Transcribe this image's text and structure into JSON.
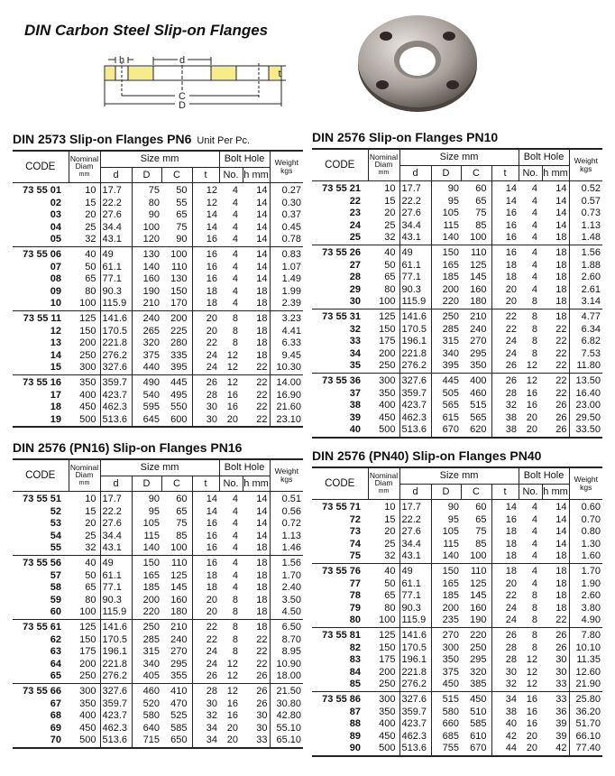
{
  "page_title": "DIN Carbon Steel Slip-on Flanges",
  "diagram_labels": {
    "h": "h",
    "d": "d",
    "t": "t",
    "C": "C",
    "D": "D"
  },
  "colors": {
    "flange_section": "#f7ec8a",
    "lines": "#222222"
  },
  "headers": {
    "code": "CODE",
    "nominal": "Nominal",
    "diam": "Diam",
    "mm": "mm",
    "size": "Size mm",
    "d": "d",
    "D": "D",
    "C": "C",
    "t": "t",
    "bolt": "Bolt Hole",
    "no": "No.",
    "hmm": "h mm",
    "weight": "Weight",
    "kgs": "kgs"
  },
  "tables": [
    {
      "title": "DIN 2573 Slip-on Flanges PN6",
      "unit": "Unit Per Pc.",
      "groups": [
        [
          [
            "73 55 01",
            "10",
            "17.7",
            "75",
            "50",
            "12",
            "4",
            "14",
            "0.27"
          ],
          [
            "02",
            "15",
            "22.2",
            "80",
            "55",
            "12",
            "4",
            "14",
            "0.30"
          ],
          [
            "03",
            "20",
            "27.6",
            "90",
            "65",
            "14",
            "4",
            "14",
            "0.37"
          ],
          [
            "04",
            "25",
            "34.4",
            "100",
            "75",
            "14",
            "4",
            "14",
            "0.45"
          ],
          [
            "05",
            "32",
            "43.1",
            "120",
            "90",
            "16",
            "4",
            "14",
            "0.78"
          ]
        ],
        [
          [
            "73 55 06",
            "40",
            "49",
            "130",
            "100",
            "16",
            "4",
            "14",
            "0.83"
          ],
          [
            "07",
            "50",
            "61.1",
            "140",
            "110",
            "16",
            "4",
            "14",
            "1.07"
          ],
          [
            "08",
            "65",
            "77.1",
            "160",
            "130",
            "16",
            "4",
            "14",
            "1.49"
          ],
          [
            "09",
            "80",
            "90.3",
            "190",
            "150",
            "18",
            "4",
            "18",
            "1.99"
          ],
          [
            "10",
            "100",
            "115.9",
            "210",
            "170",
            "18",
            "4",
            "18",
            "2.39"
          ]
        ],
        [
          [
            "73 55 11",
            "125",
            "141.6",
            "240",
            "200",
            "20",
            "8",
            "18",
            "3.23"
          ],
          [
            "12",
            "150",
            "170.5",
            "265",
            "225",
            "20",
            "8",
            "18",
            "4.41"
          ],
          [
            "13",
            "200",
            "221.8",
            "320",
            "280",
            "22",
            "8",
            "18",
            "6.33"
          ],
          [
            "14",
            "250",
            "276.2",
            "375",
            "335",
            "24",
            "12",
            "18",
            "9.45"
          ],
          [
            "15",
            "300",
            "327.6",
            "440",
            "395",
            "24",
            "12",
            "22",
            "10.30"
          ]
        ],
        [
          [
            "73 55 16",
            "350",
            "359.7",
            "490",
            "445",
            "26",
            "12",
            "22",
            "14.00"
          ],
          [
            "17",
            "400",
            "423.7",
            "540",
            "495",
            "28",
            "16",
            "22",
            "16.90"
          ],
          [
            "18",
            "450",
            "462.3",
            "595",
            "550",
            "30",
            "16",
            "22",
            "21.60"
          ],
          [
            "19",
            "500",
            "513.6",
            "645",
            "600",
            "30",
            "20",
            "22",
            "23.10"
          ]
        ]
      ]
    },
    {
      "title": "DIN 2576 Slip-on Flanges PN10",
      "groups": [
        [
          [
            "73 55 21",
            "10",
            "17.7",
            "90",
            "60",
            "14",
            "4",
            "14",
            "0.52"
          ],
          [
            "22",
            "15",
            "22.2",
            "95",
            "65",
            "14",
            "4",
            "14",
            "0.57"
          ],
          [
            "23",
            "20",
            "27.6",
            "105",
            "75",
            "16",
            "4",
            "14",
            "0.73"
          ],
          [
            "24",
            "25",
            "34.4",
            "115",
            "85",
            "16",
            "4",
            "14",
            "1.13"
          ],
          [
            "25",
            "32",
            "43.1",
            "140",
            "100",
            "16",
            "4",
            "18",
            "1.48"
          ]
        ],
        [
          [
            "73 55 26",
            "40",
            "49",
            "150",
            "110",
            "16",
            "4",
            "18",
            "1.56"
          ],
          [
            "27",
            "50",
            "61.1",
            "165",
            "125",
            "18",
            "4",
            "18",
            "1.88"
          ],
          [
            "28",
            "65",
            "77.1",
            "185",
            "145",
            "18",
            "4",
            "18",
            "2.60"
          ],
          [
            "29",
            "80",
            "90.3",
            "200",
            "160",
            "20",
            "4",
            "18",
            "2.61"
          ],
          [
            "30",
            "100",
            "115.9",
            "220",
            "180",
            "20",
            "8",
            "18",
            "3.14"
          ]
        ],
        [
          [
            "73 55 31",
            "125",
            "141.6",
            "250",
            "210",
            "22",
            "8",
            "18",
            "4.77"
          ],
          [
            "32",
            "150",
            "170.5",
            "285",
            "240",
            "22",
            "8",
            "22",
            "6.34"
          ],
          [
            "33",
            "175",
            "196.1",
            "315",
            "270",
            "24",
            "8",
            "22",
            "6.82"
          ],
          [
            "34",
            "200",
            "221.8",
            "340",
            "295",
            "24",
            "8",
            "22",
            "7.53"
          ],
          [
            "35",
            "250",
            "276.2",
            "395",
            "350",
            "26",
            "12",
            "22",
            "11.80"
          ]
        ],
        [
          [
            "73 55 36",
            "300",
            "327.6",
            "445",
            "400",
            "26",
            "12",
            "22",
            "13.50"
          ],
          [
            "37",
            "350",
            "359.7",
            "505",
            "460",
            "28",
            "16",
            "22",
            "16.40"
          ],
          [
            "38",
            "400",
            "423.7",
            "565",
            "515",
            "32",
            "16",
            "26",
            "23.00"
          ],
          [
            "39",
            "450",
            "462.3",
            "615",
            "565",
            "38",
            "20",
            "26",
            "29.50"
          ],
          [
            "40",
            "500",
            "513.6",
            "670",
            "620",
            "38",
            "20",
            "26",
            "33.50"
          ]
        ]
      ]
    },
    {
      "title": "DIN 2576 (PN16) Slip-on Flanges PN16",
      "groups": [
        [
          [
            "73 55 51",
            "10",
            "17.7",
            "90",
            "60",
            "14",
            "4",
            "14",
            "0.51"
          ],
          [
            "52",
            "15",
            "22.2",
            "95",
            "65",
            "14",
            "4",
            "14",
            "0.56"
          ],
          [
            "53",
            "20",
            "27.6",
            "105",
            "75",
            "16",
            "4",
            "14",
            "0.72"
          ],
          [
            "54",
            "25",
            "34.4",
            "115",
            "85",
            "16",
            "4",
            "14",
            "1.13"
          ],
          [
            "55",
            "32",
            "43.1",
            "140",
            "100",
            "16",
            "4",
            "18",
            "1.46"
          ]
        ],
        [
          [
            "73 55 56",
            "40",
            "49",
            "150",
            "110",
            "16",
            "4",
            "18",
            "1.56"
          ],
          [
            "57",
            "50",
            "61.1",
            "165",
            "125",
            "18",
            "4",
            "18",
            "1.70"
          ],
          [
            "58",
            "65",
            "77.1",
            "185",
            "145",
            "18",
            "4",
            "18",
            "2.40"
          ],
          [
            "59",
            "80",
            "90.3",
            "200",
            "160",
            "20",
            "8",
            "18",
            "3.50"
          ],
          [
            "60",
            "100",
            "115.9",
            "220",
            "180",
            "20",
            "8",
            "18",
            "4.50"
          ]
        ],
        [
          [
            "73 55 61",
            "125",
            "141.6",
            "250",
            "210",
            "22",
            "8",
            "18",
            "6.50"
          ],
          [
            "62",
            "150",
            "170.5",
            "285",
            "240",
            "22",
            "8",
            "22",
            "8.70"
          ],
          [
            "63",
            "175",
            "196.1",
            "315",
            "270",
            "24",
            "8",
            "22",
            "8.95"
          ],
          [
            "64",
            "200",
            "221.8",
            "340",
            "295",
            "24",
            "12",
            "22",
            "10.90"
          ],
          [
            "65",
            "250",
            "276.2",
            "405",
            "355",
            "26",
            "12",
            "26",
            "18.00"
          ]
        ],
        [
          [
            "73 55 66",
            "300",
            "327.6",
            "460",
            "410",
            "28",
            "12",
            "26",
            "21.50"
          ],
          [
            "67",
            "350",
            "359.7",
            "520",
            "470",
            "30",
            "16",
            "26",
            "30.80"
          ],
          [
            "68",
            "400",
            "423.7",
            "580",
            "525",
            "32",
            "16",
            "30",
            "42.80"
          ],
          [
            "69",
            "450",
            "462.3",
            "640",
            "585",
            "34",
            "20",
            "30",
            "55.10"
          ],
          [
            "70",
            "500",
            "513.6",
            "715",
            "650",
            "34",
            "20",
            "33",
            "65.10"
          ]
        ]
      ]
    },
    {
      "title": "DIN 2576 (PN40) Slip-on Flanges PN40",
      "groups": [
        [
          [
            "73 55 71",
            "10",
            "17.7",
            "90",
            "60",
            "14",
            "4",
            "14",
            "0.60"
          ],
          [
            "72",
            "15",
            "22.2",
            "95",
            "65",
            "16",
            "4",
            "14",
            "0.70"
          ],
          [
            "73",
            "20",
            "27.6",
            "105",
            "75",
            "18",
            "4",
            "14",
            "0.80"
          ],
          [
            "74",
            "25",
            "34.4",
            "115",
            "85",
            "18",
            "4",
            "14",
            "1.30"
          ],
          [
            "75",
            "32",
            "43.1",
            "140",
            "100",
            "18",
            "4",
            "18",
            "1.60"
          ]
        ],
        [
          [
            "73 55 76",
            "40",
            "49",
            "150",
            "110",
            "18",
            "4",
            "18",
            "1.70"
          ],
          [
            "77",
            "50",
            "61.1",
            "165",
            "125",
            "20",
            "4",
            "18",
            "1.90"
          ],
          [
            "78",
            "65",
            "77.1",
            "185",
            "145",
            "22",
            "8",
            "18",
            "2.60"
          ],
          [
            "79",
            "80",
            "90.3",
            "200",
            "160",
            "24",
            "8",
            "18",
            "3.80"
          ],
          [
            "80",
            "100",
            "115.9",
            "235",
            "190",
            "24",
            "8",
            "22",
            "4.90"
          ]
        ],
        [
          [
            "73 55 81",
            "125",
            "141.6",
            "270",
            "220",
            "26",
            "8",
            "26",
            "7.80"
          ],
          [
            "82",
            "150",
            "170.5",
            "300",
            "250",
            "28",
            "8",
            "26",
            "10.10"
          ],
          [
            "83",
            "175",
            "196.1",
            "350",
            "295",
            "28",
            "12",
            "30",
            "11.35"
          ],
          [
            "84",
            "200",
            "221.8",
            "375",
            "320",
            "30",
            "12",
            "30",
            "12.60"
          ],
          [
            "85",
            "250",
            "276.2",
            "450",
            "385",
            "32",
            "12",
            "33",
            "21.90"
          ]
        ],
        [
          [
            "73 55 86",
            "300",
            "327.6",
            "515",
            "450",
            "34",
            "16",
            "33",
            "25.80"
          ],
          [
            "87",
            "350",
            "359.7",
            "580",
            "510",
            "38",
            "16",
            "36",
            "36.20"
          ],
          [
            "88",
            "400",
            "423.7",
            "660",
            "585",
            "40",
            "16",
            "39",
            "51.70"
          ],
          [
            "89",
            "450",
            "462.3",
            "685",
            "610",
            "42",
            "20",
            "39",
            "66.10"
          ],
          [
            "90",
            "500",
            "513.6",
            "755",
            "670",
            "44",
            "20",
            "42",
            "77.40"
          ]
        ]
      ]
    }
  ]
}
